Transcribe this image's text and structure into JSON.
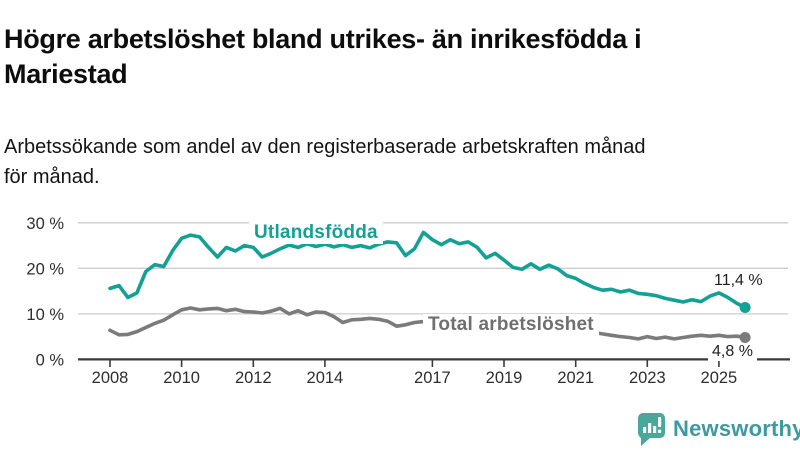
{
  "header": {
    "title": "Högre arbetslöshet bland utrikes- än inrikesfödda i\nMariestad",
    "subtitle": "Arbetssökande som andel av den registerbaserade arbetskraften månad\nför månad."
  },
  "logo": {
    "text": "Newsworthy",
    "icon": "speech-bubble-with-bar-chart-and-exclamation",
    "icon_color": "#4AA79C",
    "text_color": "#3E99A1"
  },
  "colors": {
    "background": "#ffffff",
    "title_text": "#0d0d0d",
    "axis": "#3a3a3a",
    "gridline": "#cccccc",
    "tick_label": "#2e2e2e",
    "value_label": "#1f1f1f",
    "series_foreign_born": "#14A195",
    "series_total": "#7B7B7B",
    "series_total_label": "#6F6F6F"
  },
  "chart_data": {
    "type": "line",
    "title": "Högre arbetslöshet bland utrikes- än inrikesfödda i Mariestad",
    "subtitle": "Arbetssökande som andel av den registerbaserade arbetskraften månad för månad.",
    "unit": "%",
    "grid": true,
    "x_axis": {
      "tick_years": [
        2008,
        2010,
        2012,
        2014,
        2017,
        2019,
        2021,
        2023,
        2025
      ],
      "labels": [
        "2008",
        "2010",
        "2012",
        "2014",
        "2017",
        "2019",
        "2021",
        "2023",
        "2025"
      ],
      "range_years": [
        2008,
        2025.73
      ]
    },
    "y_axis": {
      "ticks": [
        0,
        10,
        20,
        30
      ],
      "labels": [
        "0 %",
        "10 %",
        "20 %",
        "30 %"
      ],
      "ylim": [
        0,
        31.5
      ]
    },
    "x": [
      2008,
      2008.25,
      2008.5,
      2008.75,
      2009,
      2009.25,
      2009.5,
      2009.75,
      2010,
      2010.25,
      2010.5,
      2010.75,
      2011,
      2011.25,
      2011.5,
      2011.75,
      2012,
      2012.25,
      2012.5,
      2012.75,
      2013,
      2013.25,
      2013.5,
      2013.75,
      2014,
      2014.25,
      2014.5,
      2014.75,
      2015,
      2015.25,
      2015.5,
      2015.75,
      2016,
      2016.25,
      2016.5,
      2016.75,
      2017,
      2017.25,
      2017.5,
      2017.75,
      2018,
      2018.25,
      2018.5,
      2018.75,
      2019,
      2019.25,
      2019.5,
      2019.75,
      2020,
      2020.25,
      2020.5,
      2020.75,
      2021,
      2021.25,
      2021.5,
      2021.75,
      2022,
      2022.25,
      2022.5,
      2022.75,
      2023,
      2023.25,
      2023.5,
      2023.75,
      2024,
      2024.25,
      2024.5,
      2024.75,
      2025,
      2025.25,
      2025.5,
      2025.73
    ],
    "series": [
      {
        "name": "Utlandsfödda",
        "color": "#14A195",
        "end_label": "11,4 %",
        "end_value": 11.4,
        "values": [
          15.6,
          16.2,
          13.6,
          14.6,
          19.3,
          20.8,
          20.4,
          23.9,
          26.6,
          27.3,
          26.9,
          24.6,
          22.5,
          24.6,
          23.8,
          25.0,
          24.6,
          22.5,
          23.3,
          24.3,
          25.1,
          24.6,
          25.4,
          24.8,
          25.3,
          24.7,
          25.2,
          24.6,
          25.0,
          24.5,
          25.3,
          25.8,
          25.6,
          22.8,
          24.3,
          27.9,
          26.3,
          25.2,
          26.3,
          25.4,
          25.8,
          24.6,
          22.3,
          23.3,
          21.8,
          20.2,
          19.8,
          21.0,
          19.8,
          20.7,
          19.9,
          18.4,
          17.8,
          16.7,
          15.8,
          15.2,
          15.4,
          14.8,
          15.2,
          14.5,
          14.3,
          14.0,
          13.4,
          13.0,
          12.6,
          13.1,
          12.7,
          13.9,
          14.6,
          13.6,
          12.3,
          11.4
        ]
      },
      {
        "name": "Total arbetslöshet",
        "color": "#7B7B7B",
        "end_label": "4,8 %",
        "end_value": 4.8,
        "values": [
          6.4,
          5.4,
          5.5,
          6.1,
          7.0,
          7.9,
          8.6,
          9.8,
          10.9,
          11.3,
          10.9,
          11.1,
          11.2,
          10.7,
          11.0,
          10.5,
          10.4,
          10.2,
          10.6,
          11.2,
          10.0,
          10.7,
          9.8,
          10.4,
          10.3,
          9.4,
          8.1,
          8.7,
          8.8,
          9.0,
          8.8,
          8.4,
          7.3,
          7.6,
          8.1,
          8.3,
          8.0,
          7.8,
          7.5,
          7.2,
          7.0,
          6.8,
          6.6,
          6.4,
          6.3,
          6.2,
          6.1,
          6.2,
          6.5,
          7.3,
          7.1,
          6.8,
          6.5,
          6.2,
          5.9,
          5.6,
          5.3,
          5.0,
          4.8,
          4.5,
          5.0,
          4.6,
          4.9,
          4.5,
          4.8,
          5.1,
          5.3,
          5.1,
          5.3,
          5.0,
          5.1,
          4.8
        ]
      }
    ]
  }
}
